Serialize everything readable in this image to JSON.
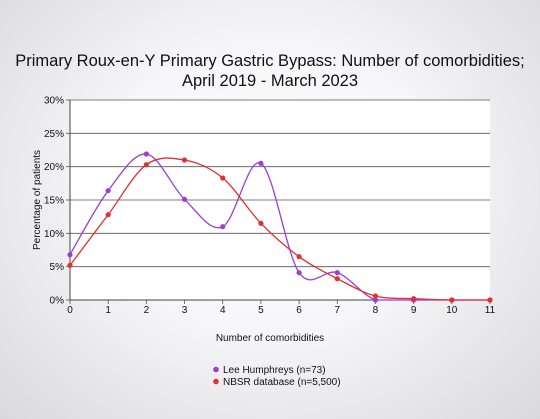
{
  "chart_data": {
    "type": "line",
    "title": "Primary Roux-en-Y Primary Gastric Bypass: Number of comorbidities;",
    "subtitle": "April 2019 - March 2023",
    "xlabel": "Number of comorbidities",
    "ylabel": "Percentage of patients",
    "x": [
      0,
      1,
      2,
      3,
      4,
      5,
      6,
      7,
      8,
      9,
      10,
      11
    ],
    "xlim": [
      0,
      11
    ],
    "ylim": [
      0,
      30
    ],
    "yticks": [
      0,
      5,
      10,
      15,
      20,
      25,
      30
    ],
    "ytick_labels": [
      "0%",
      "5%",
      "10%",
      "15%",
      "20%",
      "25%",
      "30%"
    ],
    "xtick_labels": [
      "0",
      "1",
      "2",
      "3",
      "4",
      "5",
      "6",
      "7",
      "8",
      "9",
      "10",
      "11"
    ],
    "grid": "horizontal",
    "legend_position": "bottom",
    "series": [
      {
        "name": "Lee Humphreys (n=73)",
        "color": "#9b3fd4",
        "values": [
          6.8,
          16.4,
          21.9,
          15.1,
          11.0,
          20.5,
          4.1,
          4.1,
          0,
          0,
          0,
          0
        ]
      },
      {
        "name": "NBSR database (n=5,500)",
        "color": "#e03030",
        "values": [
          5.2,
          12.8,
          20.3,
          21.0,
          18.3,
          11.5,
          6.5,
          3.2,
          0.6,
          0.2,
          0,
          0
        ]
      }
    ]
  }
}
